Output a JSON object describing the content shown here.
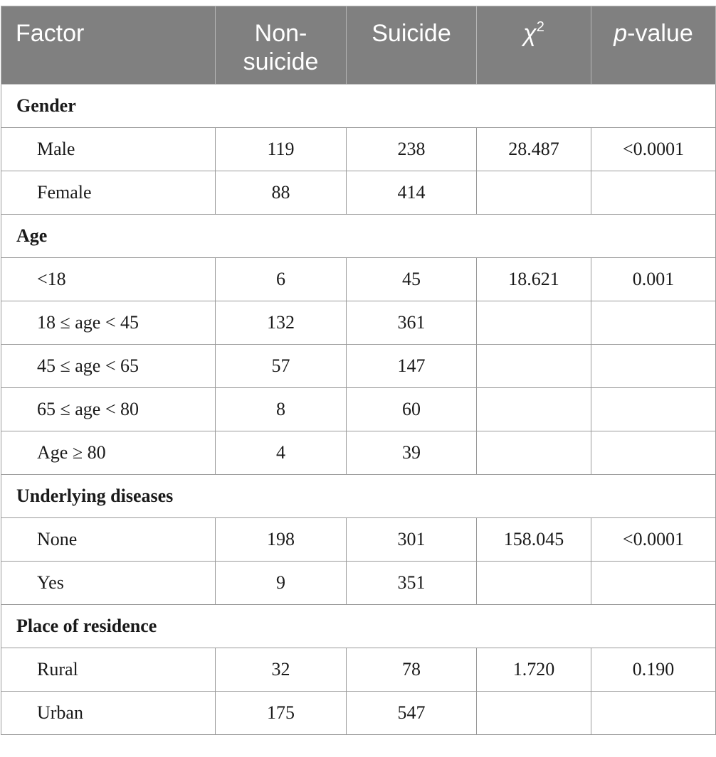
{
  "table": {
    "headers": {
      "factor": "Factor",
      "non_suicide_line1": "Non-",
      "non_suicide_line2": "suicide",
      "suicide": "Suicide",
      "chi_symbol": "χ",
      "chi_exp": "2",
      "p_italic": "p",
      "p_rest": "-value"
    },
    "groups": [
      {
        "label": "Gender",
        "rows": [
          {
            "factor": "Male",
            "non_suicide": "119",
            "suicide": "238",
            "chi2": "28.487",
            "p": "<0.0001"
          },
          {
            "factor": "Female",
            "non_suicide": "88",
            "suicide": "414",
            "chi2": "",
            "p": ""
          }
        ]
      },
      {
        "label": "Age",
        "rows": [
          {
            "factor": "<18",
            "non_suicide": "6",
            "suicide": "45",
            "chi2": "18.621",
            "p": "0.001"
          },
          {
            "factor": "18 ≤ age < 45",
            "non_suicide": "132",
            "suicide": "361",
            "chi2": "",
            "p": ""
          },
          {
            "factor": "45 ≤ age < 65",
            "non_suicide": "57",
            "suicide": "147",
            "chi2": "",
            "p": ""
          },
          {
            "factor": "65 ≤ age < 80",
            "non_suicide": "8",
            "suicide": "60",
            "chi2": "",
            "p": ""
          },
          {
            "factor": "Age ≥ 80",
            "non_suicide": "4",
            "suicide": "39",
            "chi2": "",
            "p": ""
          }
        ]
      },
      {
        "label": "Underlying diseases",
        "rows": [
          {
            "factor": "None",
            "non_suicide": "198",
            "suicide": "301",
            "chi2": "158.045",
            "p": "<0.0001"
          },
          {
            "factor": "Yes",
            "non_suicide": "9",
            "suicide": "351",
            "chi2": "",
            "p": ""
          }
        ]
      },
      {
        "label": "Place of residence",
        "rows": [
          {
            "factor": "Rural",
            "non_suicide": "32",
            "suicide": "78",
            "chi2": "1.720",
            "p": "0.190"
          },
          {
            "factor": "Urban",
            "non_suicide": "175",
            "suicide": "547",
            "chi2": "",
            "p": ""
          }
        ]
      }
    ]
  }
}
